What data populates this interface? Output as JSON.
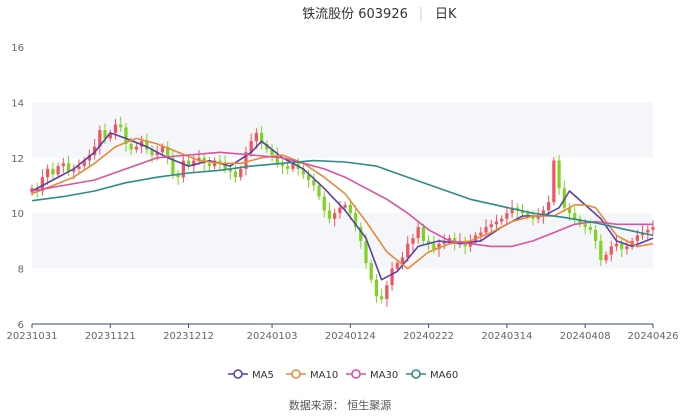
{
  "header": {
    "title": "铁流股份 603926",
    "period": "日K"
  },
  "source": "数据来源： 恒生聚源",
  "colors": {
    "up": "#f0555f",
    "down": "#7ed321",
    "band": "#f5f6fa",
    "axis": "#3d4b66",
    "tick_text": "#666666",
    "MA5": "#5b3fa6",
    "MA10": "#e8893a",
    "MA30": "#d9539e",
    "MA60": "#2e8b8b"
  },
  "chart_data": {
    "type": "candlestick",
    "ylim": [
      6,
      16
    ],
    "yticks": [
      6,
      8,
      10,
      12,
      14,
      16
    ],
    "xtick_labels": [
      {
        "date": "20231031",
        "i": 0
      },
      {
        "date": "20231121",
        "i": 15
      },
      {
        "date": "20231212",
        "i": 30
      },
      {
        "date": "20240103",
        "i": 46
      },
      {
        "date": "20240124",
        "i": 61
      },
      {
        "date": "20240222",
        "i": 76
      },
      {
        "date": "20240314",
        "i": 91
      },
      {
        "date": "20240408",
        "i": 106
      },
      {
        "date": "20240426",
        "i": 119
      }
    ],
    "legend": {
      "position": "bottom",
      "items": [
        "MA5",
        "MA10",
        "MA30",
        "MA60"
      ]
    },
    "closes": [
      10.9,
      10.8,
      11.3,
      11.6,
      11.4,
      11.7,
      11.8,
      11.5,
      11.6,
      11.7,
      11.9,
      12.1,
      12.4,
      13.0,
      12.7,
      12.9,
      13.2,
      13.1,
      12.5,
      12.3,
      12.4,
      12.6,
      12.3,
      12.1,
      12.2,
      12.4,
      12.0,
      11.4,
      11.3,
      11.9,
      11.7,
      11.9,
      12.0,
      11.8,
      11.7,
      11.9,
      11.8,
      11.6,
      11.5,
      11.3,
      11.6,
      12.2,
      12.6,
      12.9,
      12.5,
      12.3,
      12.1,
      11.8,
      11.7,
      11.6,
      11.8,
      11.6,
      11.4,
      11.2,
      11.0,
      10.6,
      10.1,
      9.8,
      10.0,
      10.2,
      10.3,
      10.0,
      9.5,
      9.0,
      8.2,
      7.6,
      7.0,
      6.9,
      7.4,
      8.0,
      8.2,
      8.4,
      8.9,
      9.1,
      9.5,
      9.0,
      8.9,
      8.7,
      8.9,
      9.0,
      9.1,
      8.9,
      9.0,
      8.8,
      9.0,
      9.2,
      9.3,
      9.5,
      9.6,
      9.7,
      9.8,
      10.0,
      10.2,
      10.1,
      10.0,
      9.9,
      9.8,
      9.9,
      10.1,
      10.4,
      11.9,
      10.9,
      10.2,
      10.0,
      9.8,
      9.6,
      9.5,
      9.4,
      9.0,
      8.3,
      8.5,
      8.8,
      8.9,
      8.7,
      8.8,
      9.0,
      9.2,
      9.3,
      9.4,
      9.5
    ],
    "series": [
      {
        "name": "MA5",
        "x": [
          0,
          4,
          8,
          12,
          15,
          18,
          22,
          26,
          30,
          34,
          38,
          42,
          44,
          48,
          52,
          56,
          60,
          64,
          67,
          70,
          74,
          78,
          82,
          86,
          90,
          94,
          98,
          101,
          103,
          106,
          109,
          112,
          115,
          119
        ],
        "y": [
          10.8,
          11.2,
          11.6,
          12.2,
          12.9,
          12.7,
          12.4,
          12.0,
          11.7,
          11.9,
          11.7,
          12.2,
          12.6,
          12.0,
          11.6,
          10.9,
          10.1,
          9.1,
          7.6,
          7.9,
          8.8,
          9.0,
          8.9,
          9.0,
          9.5,
          9.9,
          9.9,
          10.2,
          10.8,
          10.3,
          9.8,
          9.0,
          8.8,
          9.1
        ]
      },
      {
        "name": "MA10",
        "x": [
          0,
          4,
          8,
          12,
          16,
          20,
          24,
          28,
          32,
          36,
          40,
          44,
          48,
          52,
          56,
          60,
          64,
          68,
          72,
          76,
          80,
          84,
          88,
          92,
          96,
          100,
          104,
          106,
          108,
          110,
          112,
          116,
          119
        ],
        "y": [
          10.7,
          11.0,
          11.3,
          11.8,
          12.4,
          12.7,
          12.5,
          12.2,
          11.9,
          11.8,
          11.8,
          12.0,
          12.1,
          11.8,
          11.3,
          10.7,
          9.7,
          8.6,
          8.0,
          8.6,
          8.9,
          9.0,
          9.3,
          9.7,
          9.9,
          9.9,
          10.3,
          10.3,
          10.2,
          9.7,
          9.2,
          8.8,
          8.9
        ]
      },
      {
        "name": "MA30",
        "x": [
          0,
          6,
          12,
          18,
          24,
          30,
          36,
          42,
          48,
          52,
          56,
          60,
          64,
          68,
          72,
          76,
          80,
          84,
          88,
          92,
          96,
          100,
          104,
          108,
          112,
          116,
          119
        ],
        "y": [
          10.8,
          11.0,
          11.2,
          11.6,
          12.0,
          12.1,
          12.2,
          12.1,
          12.0,
          11.8,
          11.6,
          11.3,
          10.9,
          10.5,
          10.0,
          9.4,
          9.0,
          8.9,
          8.8,
          8.8,
          9.0,
          9.3,
          9.6,
          9.7,
          9.6,
          9.6,
          9.6
        ]
      },
      {
        "name": "MA60",
        "x": [
          0,
          6,
          12,
          18,
          24,
          30,
          36,
          42,
          48,
          54,
          60,
          66,
          72,
          78,
          84,
          90,
          96,
          102,
          108,
          114,
          119
        ],
        "y": [
          10.45,
          10.6,
          10.8,
          11.1,
          11.3,
          11.45,
          11.55,
          11.7,
          11.8,
          11.9,
          11.85,
          11.7,
          11.3,
          10.9,
          10.5,
          10.25,
          10.0,
          9.85,
          9.65,
          9.4,
          9.2
        ]
      }
    ]
  }
}
